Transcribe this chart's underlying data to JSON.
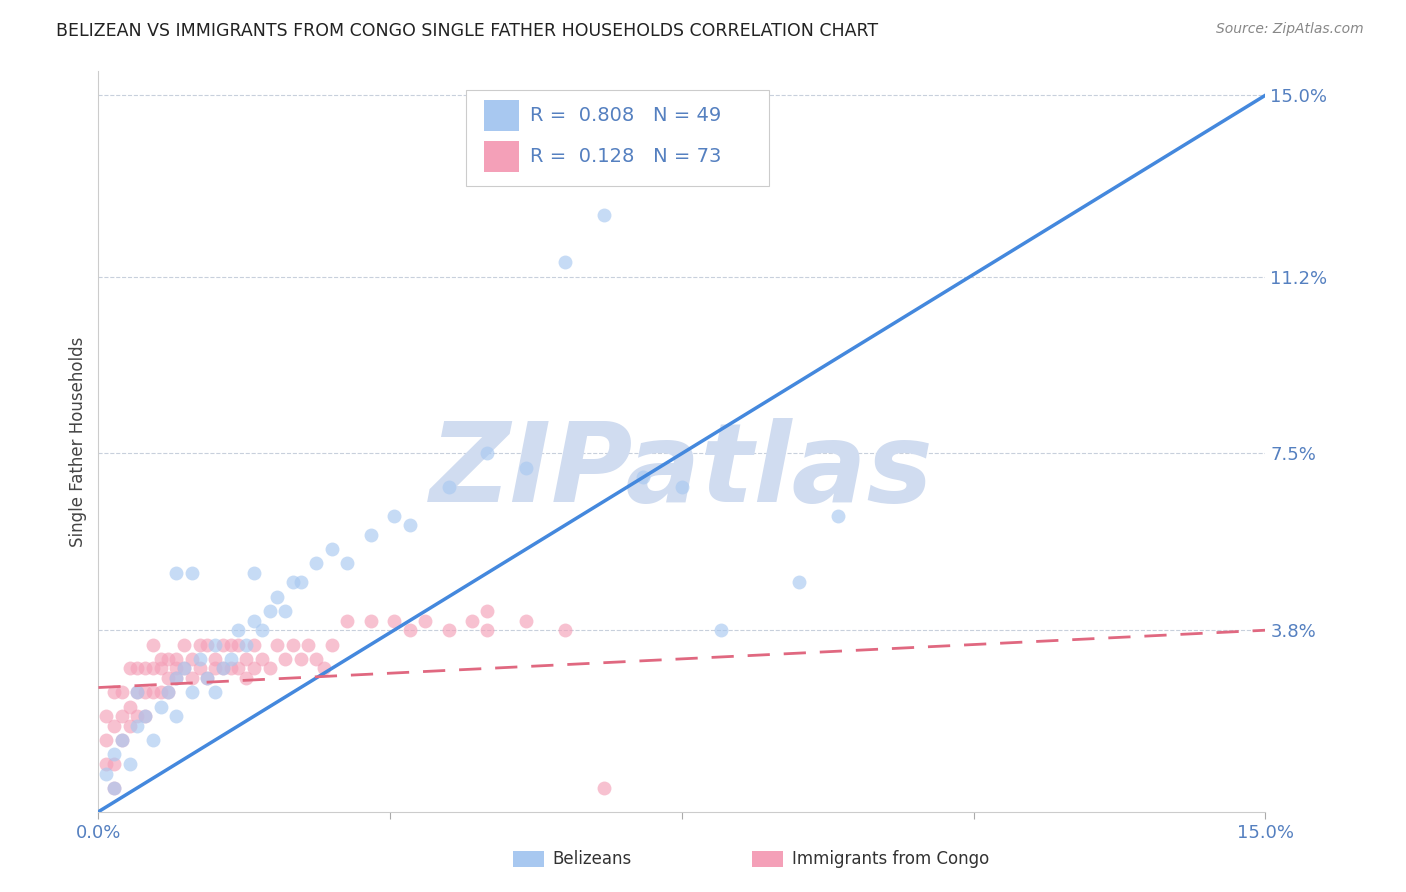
{
  "title": "BELIZEAN VS IMMIGRANTS FROM CONGO SINGLE FATHER HOUSEHOLDS CORRELATION CHART",
  "source": "Source: ZipAtlas.com",
  "ylabel": "Single Father Households",
  "xlim": [
    0.0,
    0.15
  ],
  "ylim": [
    0.0,
    0.155
  ],
  "yticks": [
    0.038,
    0.075,
    0.112,
    0.15
  ],
  "ytick_labels": [
    "3.8%",
    "7.5%",
    "11.2%",
    "15.0%"
  ],
  "xticks": [
    0.0,
    0.0375,
    0.075,
    0.1125,
    0.15
  ],
  "xtick_labels": [
    "0.0%",
    "",
    "",
    "",
    "15.0%"
  ],
  "blue_color": "#A8C8F0",
  "pink_color": "#F4A0B8",
  "blue_line_color": "#4488DD",
  "pink_line_color": "#E06880",
  "legend_blue_r": "0.808",
  "legend_blue_n": "49",
  "legend_pink_r": "0.128",
  "legend_pink_n": "73",
  "legend_label_blue": "Belizeans",
  "legend_label_pink": "Immigrants from Congo",
  "watermark": "ZIPatlas",
  "watermark_color": "#D0DCF0",
  "blue_slope": 1.0,
  "blue_intercept": 0.0,
  "pink_slope": 0.08,
  "pink_intercept": 0.026,
  "blue_x": [
    0.001,
    0.002,
    0.002,
    0.003,
    0.004,
    0.005,
    0.005,
    0.006,
    0.007,
    0.008,
    0.009,
    0.01,
    0.01,
    0.011,
    0.012,
    0.013,
    0.014,
    0.015,
    0.015,
    0.016,
    0.017,
    0.018,
    0.019,
    0.02,
    0.021,
    0.022,
    0.023,
    0.024,
    0.025,
    0.026,
    0.028,
    0.03,
    0.032,
    0.035,
    0.038,
    0.04,
    0.045,
    0.05,
    0.055,
    0.06,
    0.065,
    0.07,
    0.075,
    0.08,
    0.09,
    0.095,
    0.01,
    0.012,
    0.02
  ],
  "blue_y": [
    0.008,
    0.012,
    0.005,
    0.015,
    0.01,
    0.018,
    0.025,
    0.02,
    0.015,
    0.022,
    0.025,
    0.028,
    0.02,
    0.03,
    0.025,
    0.032,
    0.028,
    0.035,
    0.025,
    0.03,
    0.032,
    0.038,
    0.035,
    0.04,
    0.038,
    0.042,
    0.045,
    0.042,
    0.048,
    0.048,
    0.052,
    0.055,
    0.052,
    0.058,
    0.062,
    0.06,
    0.068,
    0.075,
    0.072,
    0.115,
    0.125,
    0.07,
    0.068,
    0.038,
    0.048,
    0.062,
    0.05,
    0.05,
    0.05
  ],
  "pink_x": [
    0.001,
    0.001,
    0.001,
    0.002,
    0.002,
    0.002,
    0.003,
    0.003,
    0.003,
    0.004,
    0.004,
    0.004,
    0.005,
    0.005,
    0.005,
    0.006,
    0.006,
    0.006,
    0.007,
    0.007,
    0.007,
    0.008,
    0.008,
    0.008,
    0.009,
    0.009,
    0.009,
    0.01,
    0.01,
    0.01,
    0.011,
    0.011,
    0.012,
    0.012,
    0.013,
    0.013,
    0.014,
    0.014,
    0.015,
    0.015,
    0.016,
    0.016,
    0.017,
    0.017,
    0.018,
    0.018,
    0.019,
    0.019,
    0.02,
    0.02,
    0.021,
    0.022,
    0.023,
    0.024,
    0.025,
    0.026,
    0.027,
    0.028,
    0.029,
    0.03,
    0.032,
    0.035,
    0.038,
    0.04,
    0.042,
    0.045,
    0.05,
    0.055,
    0.06,
    0.065,
    0.048,
    0.05,
    0.002
  ],
  "pink_y": [
    0.02,
    0.015,
    0.01,
    0.018,
    0.025,
    0.01,
    0.02,
    0.015,
    0.025,
    0.022,
    0.018,
    0.03,
    0.025,
    0.02,
    0.03,
    0.025,
    0.02,
    0.03,
    0.03,
    0.025,
    0.035,
    0.03,
    0.025,
    0.032,
    0.028,
    0.032,
    0.025,
    0.03,
    0.028,
    0.032,
    0.03,
    0.035,
    0.032,
    0.028,
    0.035,
    0.03,
    0.035,
    0.028,
    0.032,
    0.03,
    0.035,
    0.03,
    0.035,
    0.03,
    0.035,
    0.03,
    0.032,
    0.028,
    0.035,
    0.03,
    0.032,
    0.03,
    0.035,
    0.032,
    0.035,
    0.032,
    0.035,
    0.032,
    0.03,
    0.035,
    0.04,
    0.04,
    0.04,
    0.038,
    0.04,
    0.038,
    0.042,
    0.04,
    0.038,
    0.005,
    0.04,
    0.038,
    0.005
  ]
}
